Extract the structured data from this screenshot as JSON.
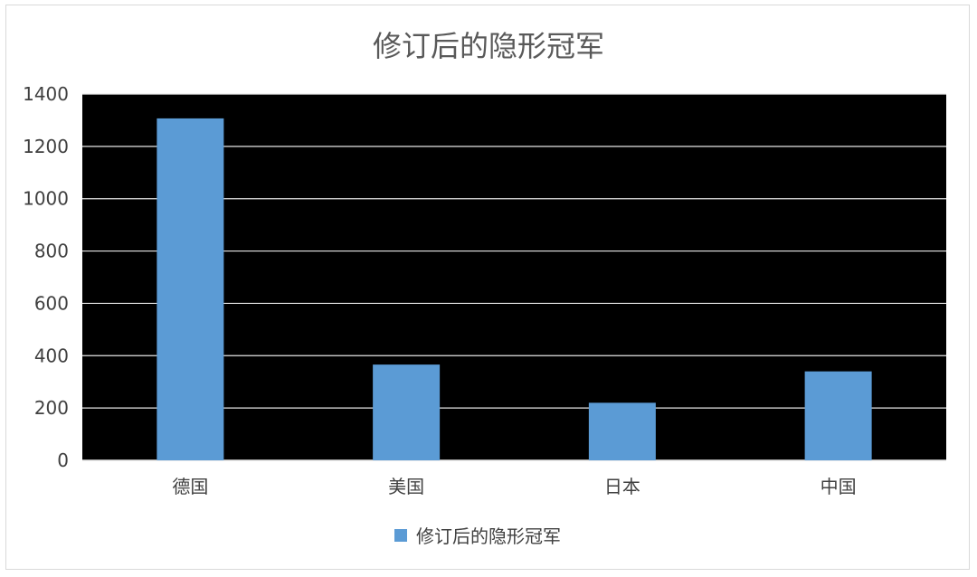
{
  "chart_data": {
    "type": "bar",
    "title": "修订后的隐形冠军",
    "categories": [
      "德国",
      "美国",
      "日本",
      "中国"
    ],
    "series": [
      {
        "name": "修订后的隐形冠军",
        "values": [
          1307,
          366,
          220,
          340
        ]
      }
    ],
    "ylim": [
      0,
      1400
    ],
    "yticks": [
      0,
      200,
      400,
      600,
      800,
      1000,
      1200,
      1400
    ],
    "grid": true,
    "legend_position": "bottom",
    "colors": {
      "bar": "#5b9bd5",
      "plot_background": "#000000",
      "gridline": "#e6e6e6"
    }
  }
}
